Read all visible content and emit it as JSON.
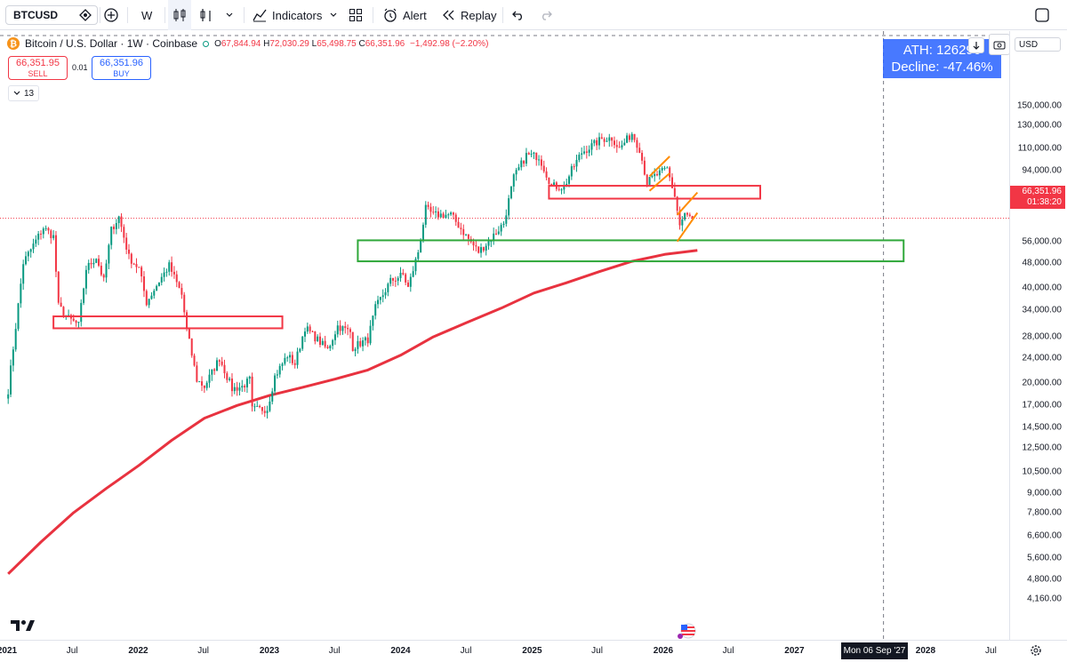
{
  "toolbar": {
    "symbol": "BTCUSD",
    "interval": "W",
    "indicators_label": "Indicators",
    "alert_label": "Alert",
    "replay_label": "Replay"
  },
  "legend": {
    "title": "Bitcoin / U.S. Dollar · 1W · Coinbase",
    "open_label": "O",
    "open": "67,844.94",
    "high_label": "H",
    "high": "72,030.29",
    "low_label": "L",
    "low": "65,498.75",
    "close_label": "C",
    "close": "66,351.96",
    "change": "−1,492.98 (−2.20%)"
  },
  "trade": {
    "sell_price": "66,351.95",
    "sell_label": "SELL",
    "spread": "0.01",
    "buy_price": "66,351.96",
    "buy_label": "BUY",
    "indicator_count": "13"
  },
  "annotation": {
    "ath_line": "ATH: 126296",
    "decline_line": "Decline: -47.46%"
  },
  "price_axis": {
    "currency": "USD",
    "ticks": [
      "150,000.00",
      "130,000.00",
      "110,000.00",
      "94,000.00",
      "78,000.00",
      "56,000.00",
      "48,000.00",
      "40,000.00",
      "34,000.00",
      "28,000.00",
      "24,000.00",
      "20,000.00",
      "17,000.00",
      "14,500.00",
      "12,500.00",
      "10,500.00",
      "9,000.00",
      "7,800.00",
      "6,600.00",
      "5,600.00",
      "4,800.00",
      "4,160.00"
    ],
    "last_price": "66,351.96",
    "countdown": "01:38:20"
  },
  "time_axis": {
    "labels": [
      "2021",
      "Jul",
      "2022",
      "Jul",
      "2023",
      "Jul",
      "2024",
      "Jul",
      "2025",
      "Jul",
      "2026",
      "Jul",
      "2027",
      "2028",
      "Jul"
    ],
    "crosshair_date": "Mon 06 Sep '27"
  },
  "colors": {
    "up": "#089981",
    "down": "#f23645",
    "ma": "#e8323f",
    "resistance_box": "#f23645",
    "support_box": "#2fa83a",
    "wedge": "#ff8c00",
    "ath_box": "#2962ff"
  },
  "chart_data": {
    "type": "candlestick",
    "scale": "log",
    "title": "Bitcoin / U.S. Dollar · 1W · Coinbase",
    "ylim": [
      4000,
      160000
    ],
    "anchors": [
      [
        "2021-01-04",
        19000
      ],
      [
        "2021-02-15",
        48000
      ],
      [
        "2021-04-12",
        62000
      ],
      [
        "2021-05-10",
        58000
      ],
      [
        "2021-05-24",
        35000
      ],
      [
        "2021-06-21",
        32000
      ],
      [
        "2021-07-19",
        30500
      ],
      [
        "2021-08-09",
        46000
      ],
      [
        "2021-09-06",
        50000
      ],
      [
        "2021-09-27",
        42000
      ],
      [
        "2021-10-18",
        61000
      ],
      [
        "2021-11-08",
        67000
      ],
      [
        "2021-12-06",
        50000
      ],
      [
        "2022-01-03",
        46000
      ],
      [
        "2022-01-24",
        36000
      ],
      [
        "2022-02-28",
        42000
      ],
      [
        "2022-03-28",
        47000
      ],
      [
        "2022-05-02",
        38000
      ],
      [
        "2022-05-16",
        29500
      ],
      [
        "2022-06-13",
        20500
      ],
      [
        "2022-07-04",
        19500
      ],
      [
        "2022-08-15",
        24000
      ],
      [
        "2022-09-19",
        19200
      ],
      [
        "2022-10-17",
        19500
      ],
      [
        "2022-11-07",
        20500
      ],
      [
        "2022-11-14",
        16500
      ],
      [
        "2022-12-26",
        16600
      ],
      [
        "2023-01-16",
        21000
      ],
      [
        "2023-02-20",
        24500
      ],
      [
        "2023-03-13",
        23000
      ],
      [
        "2023-04-10",
        30000
      ],
      [
        "2023-06-12",
        25500
      ],
      [
        "2023-07-10",
        30300
      ],
      [
        "2023-08-14",
        29000
      ],
      [
        "2023-08-21",
        26000
      ],
      [
        "2023-10-02",
        27500
      ],
      [
        "2023-10-23",
        34500
      ],
      [
        "2023-12-04",
        42000
      ],
      [
        "2024-01-08",
        44000
      ],
      [
        "2024-01-22",
        40000
      ],
      [
        "2024-02-19",
        52000
      ],
      [
        "2024-03-11",
        71000
      ],
      [
        "2024-04-01",
        68000
      ],
      [
        "2024-05-20",
        68000
      ],
      [
        "2024-07-08",
        57000
      ],
      [
        "2024-08-05",
        52000
      ],
      [
        "2024-09-02",
        56000
      ],
      [
        "2024-10-14",
        64000
      ],
      [
        "2024-11-11",
        89000
      ],
      [
        "2024-12-16",
        105000
      ],
      [
        "2025-01-20",
        104000
      ],
      [
        "2025-02-24",
        84000
      ],
      [
        "2025-03-31",
        83000
      ],
      [
        "2025-04-21",
        94000
      ],
      [
        "2025-05-19",
        107000
      ],
      [
        "2025-07-14",
        118000
      ],
      [
        "2025-08-11",
        119000
      ],
      [
        "2025-09-01",
        110000
      ],
      [
        "2025-10-06",
        123000
      ],
      [
        "2025-10-27",
        110000
      ],
      [
        "2025-11-17",
        86000
      ],
      [
        "2025-12-08",
        90000
      ],
      [
        "2026-01-12",
        95000
      ],
      [
        "2026-02-02",
        78000
      ],
      [
        "2026-02-16",
        63000
      ],
      [
        "2026-03-02",
        68000
      ],
      [
        "2026-03-23",
        66351
      ]
    ],
    "ma_series": {
      "name": "",
      "points": [
        [
          "2021-01-04",
          5000
        ],
        [
          "2021-04-05",
          6300
        ],
        [
          "2021-07-05",
          7800
        ],
        [
          "2021-10-04",
          9300
        ],
        [
          "2022-01-03",
          11000
        ],
        [
          "2022-04-04",
          13200
        ],
        [
          "2022-07-04",
          15500
        ],
        [
          "2022-10-03",
          17000
        ],
        [
          "2023-01-02",
          18300
        ],
        [
          "2023-04-03",
          19400
        ],
        [
          "2023-07-03",
          20600
        ],
        [
          "2023-10-02",
          22000
        ],
        [
          "2024-01-01",
          24500
        ],
        [
          "2024-04-01",
          28000
        ],
        [
          "2024-07-01",
          31000
        ],
        [
          "2024-10-07",
          34500
        ],
        [
          "2025-01-06",
          38500
        ],
        [
          "2025-04-07",
          41500
        ],
        [
          "2025-07-07",
          45000
        ],
        [
          "2025-10-06",
          48500
        ],
        [
          "2026-01-05",
          51000
        ],
        [
          "2026-04-06",
          52500
        ]
      ]
    },
    "zones": [
      {
        "kind": "resistance",
        "start": "2021-05-10",
        "end": "2023-02-06",
        "low": 29800,
        "high": 32500
      },
      {
        "kind": "resistance",
        "start": "2025-02-17",
        "end": "2026-09-28",
        "low": 76500,
        "high": 84000
      },
      {
        "kind": "support",
        "start": "2023-09-04",
        "end": "2027-11-01",
        "low": 48500,
        "high": 56500
      }
    ],
    "wedges": [
      {
        "start": "2025-11-24",
        "end": "2026-01-19",
        "lower": [
          81000,
          92000
        ],
        "upper": [
          90000,
          104000
        ]
      },
      {
        "start": "2026-02-09",
        "end": "2026-04-06",
        "lower": [
          56000,
          69000
        ],
        "upper": [
          68000,
          80000
        ]
      }
    ]
  }
}
